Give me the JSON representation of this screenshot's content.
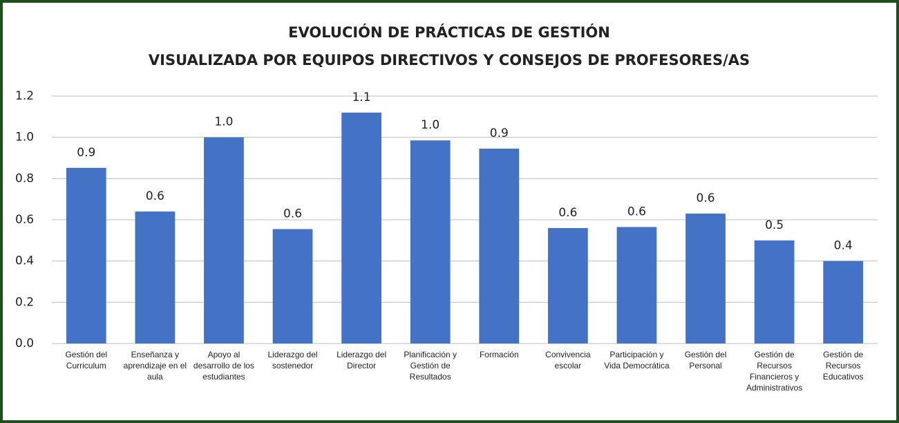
{
  "chart_data": {
    "type": "bar",
    "title": [
      "EVOLUCIÓN DE PRÁCTICAS DE GESTIÓN",
      "VISUALIZADA POR EQUIPOS DIRECTIVOS Y CONSEJOS DE PROFESORES/AS"
    ],
    "categories": [
      "Gestión del Curriculum",
      "Enseñanza y aprendizaje en el aula",
      "Apoyo al desarrollo de los estudiantes",
      "Liderazgo del sostenedor",
      "Liderazgo del Director",
      "Planificación y Gestión de Resultados",
      "Formación",
      "Convivencia escolar",
      "Participación y Vida Democrática",
      "Gestión del Personal",
      "Gestión de Recursos Financieros y Administrativos",
      "Gestión de Recursos Educativos"
    ],
    "values": [
      0.852,
      0.64,
      1.0,
      0.555,
      1.12,
      0.985,
      0.945,
      0.56,
      0.565,
      0.63,
      0.5,
      0.4
    ],
    "value_labels": [
      "0.9",
      "0.6",
      "1.0",
      "0.6",
      "1.1",
      "1.0",
      "0.9",
      "0.6",
      "0.6",
      "0.6",
      "0.5",
      "0.4"
    ],
    "color": "#4472c4",
    "ylim": [
      0,
      1.2
    ],
    "yticks": [
      {
        "value": 0,
        "label": "0.0"
      },
      0.2,
      0.4,
      0.6,
      0.8,
      {
        "value": 1,
        "label": "1.0"
      },
      1.2
    ],
    "grid": true
  }
}
